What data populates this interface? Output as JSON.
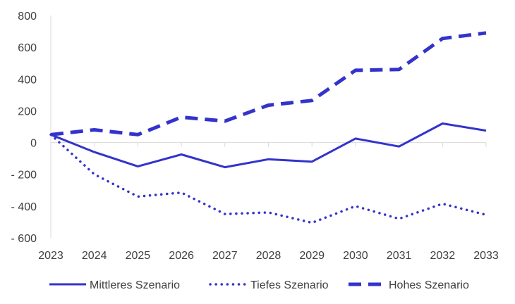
{
  "chart_data": {
    "type": "line",
    "title": "",
    "xlabel": "",
    "ylabel": "",
    "x": [
      "2023",
      "2024",
      "2025",
      "2026",
      "2027",
      "2028",
      "2029",
      "2030",
      "2031",
      "2032",
      "2033"
    ],
    "ylim": [
      -600,
      800
    ],
    "yticks": [
      800,
      600,
      400,
      200,
      0,
      -200,
      -400,
      -600
    ],
    "ytick_labels": [
      "800",
      "600",
      "400",
      "200",
      "0",
      "- 200",
      "- 400",
      "- 600"
    ],
    "grid": false,
    "legend_position": "bottom",
    "series": [
      {
        "name": "Mittleres Szenario",
        "style": "solid",
        "color": "#3333CC",
        "values": [
          50,
          -60,
          -150,
          -75,
          -155,
          -105,
          -120,
          25,
          -25,
          120,
          75
        ]
      },
      {
        "name": "Tiefes Szenario",
        "style": "dotted",
        "color": "#3333CC",
        "values": [
          50,
          -200,
          -340,
          -315,
          -450,
          -440,
          -505,
          -400,
          -480,
          -385,
          -455
        ]
      },
      {
        "name": "Hohes Szenario",
        "style": "dashed",
        "color": "#3333CC",
        "values": [
          50,
          80,
          50,
          160,
          135,
          235,
          265,
          455,
          460,
          655,
          690
        ]
      }
    ]
  }
}
